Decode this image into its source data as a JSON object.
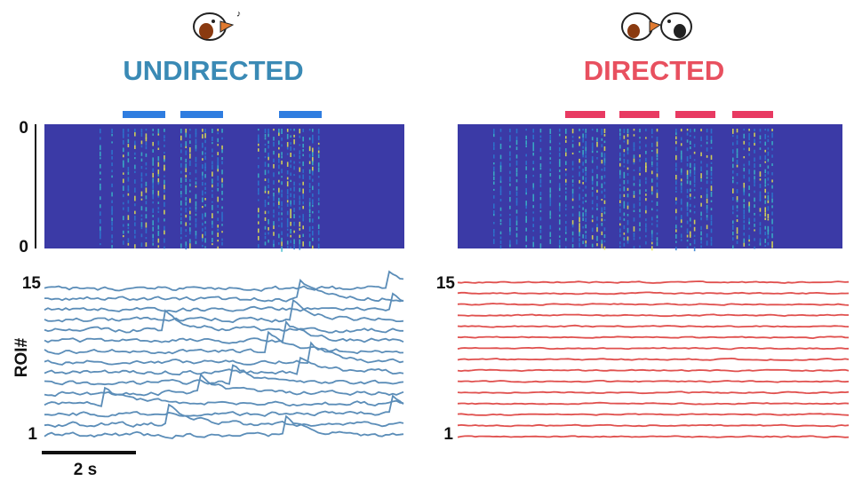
{
  "panels": [
    {
      "title": "UNDIRECTED",
      "roi_top": "15",
      "roi_bottom": "1"
    },
    {
      "title": "DIRECTED",
      "roi_top": "15",
      "roi_bottom": "1"
    }
  ],
  "spectrogram_ticks": [
    "0",
    "0"
  ],
  "y_label": "ROI#",
  "scale_bar": "2 s"
}
